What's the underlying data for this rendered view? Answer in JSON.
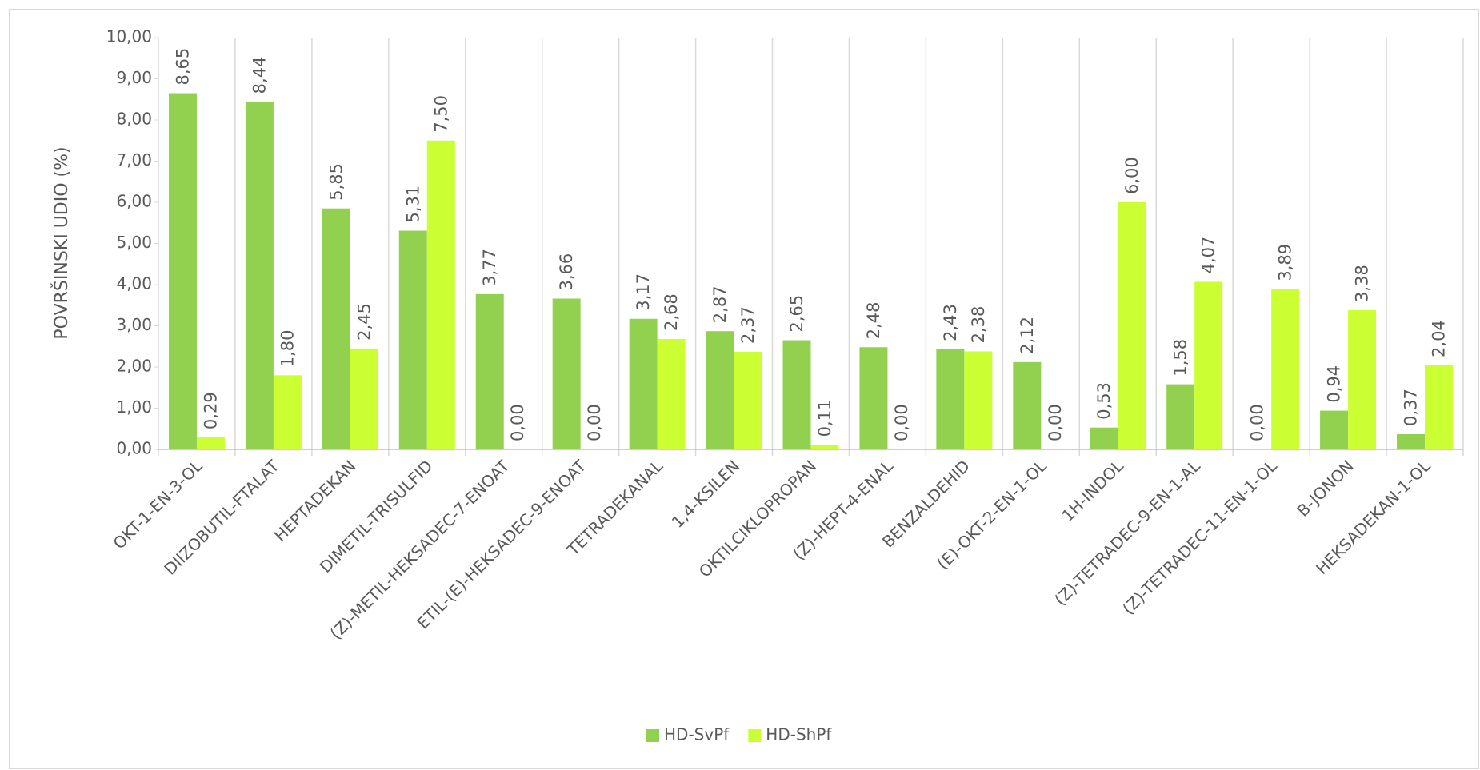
{
  "chart_data": {
    "type": "bar",
    "y_label": "POVRŠINSKI UDIO (%)",
    "categories": [
      "OKT-1-EN-3-OL",
      "DIIZOBUTIL-FTALAT",
      "HEPTADEKAN",
      "DIMETIL-TRISULFID",
      "(Z)-METIL-HEKSADEC-7-ENOAT",
      "ETIL-(E)-HEKSADEC-9-ENOAT",
      "TETRADEKANAL",
      "1,4-KSILEN",
      "OKTILCIKLOPROPAN",
      "(Z)-HEPT-4-ENAL",
      "BENZALDEHID",
      "(E)-OKT-2-EN-1-OL",
      "1H-INDOL",
      "(Z)-TETRADEC-9-EN-1-AL",
      "(Z)-TETRADEC-11-EN-1-OL",
      "B-JONON",
      "HEKSADEKAN-1-OL"
    ],
    "series": [
      {
        "name": "HD-SvPf",
        "color": "#92d050",
        "values": [
          8.65,
          8.44,
          5.85,
          5.31,
          3.77,
          3.66,
          3.17,
          2.87,
          2.65,
          2.48,
          2.43,
          2.12,
          0.53,
          1.58,
          0.0,
          0.94,
          0.37
        ],
        "value_labels": [
          "8,65",
          "8,44",
          "5,85",
          "5,31",
          "3,77",
          "3,66",
          "3,17",
          "2,87",
          "2,65",
          "2,48",
          "2,43",
          "2,12",
          "0,53",
          "1,58",
          "0,00",
          "0,94",
          "0,37"
        ]
      },
      {
        "name": "HD-ShPf",
        "color": "#ccff33",
        "values": [
          0.29,
          1.8,
          2.45,
          7.5,
          0.0,
          0.0,
          2.68,
          2.37,
          0.11,
          0.0,
          2.38,
          0.0,
          6.0,
          4.07,
          3.89,
          3.38,
          2.04
        ],
        "value_labels": [
          "0,29",
          "1,80",
          "2,45",
          "7,50",
          "0,00",
          "0,00",
          "2,68",
          "2,37",
          "0,11",
          "0,00",
          "2,38",
          "0,00",
          "6,00",
          "4,07",
          "3,89",
          "3,38",
          "2,04"
        ]
      }
    ],
    "ylim": [
      0,
      10
    ],
    "yticks": [
      {
        "value": 0,
        "label": "0,00"
      },
      {
        "value": 1,
        "label": "1,00"
      },
      {
        "value": 2,
        "label": "2,00"
      },
      {
        "value": 3,
        "label": "3,00"
      },
      {
        "value": 4,
        "label": "4,00"
      },
      {
        "value": 5,
        "label": "5,00"
      },
      {
        "value": 6,
        "label": "6,00"
      },
      {
        "value": 7,
        "label": "7,00"
      },
      {
        "value": 8,
        "label": "8,00"
      },
      {
        "value": 9,
        "label": "9,00"
      },
      {
        "value": 10,
        "label": "10,00"
      }
    ],
    "legend": "bottom"
  }
}
